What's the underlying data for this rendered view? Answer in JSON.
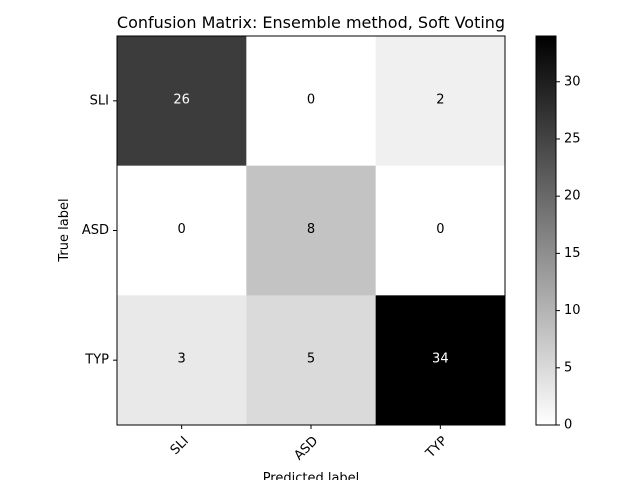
{
  "chart_data": {
    "type": "heatmap",
    "title": "Confusion Matrix: Ensemble method, Soft Voting",
    "xlabel": "Predicted label",
    "ylabel": "True label",
    "row_labels": [
      "SLI",
      "ASD",
      "TYP"
    ],
    "col_labels": [
      "SLI",
      "ASD",
      "TYP"
    ],
    "values": [
      [
        26,
        0,
        2
      ],
      [
        0,
        8,
        0
      ],
      [
        3,
        5,
        34
      ]
    ],
    "colormap": "Greys",
    "color_min": 0,
    "color_max": 34,
    "colorbar_ticks": [
      0,
      5,
      10,
      15,
      20,
      25,
      30
    ],
    "colorbar_tick_labels": [
      "0",
      "5",
      "10",
      "15",
      "20",
      "25",
      "30"
    ],
    "grid": false
  }
}
